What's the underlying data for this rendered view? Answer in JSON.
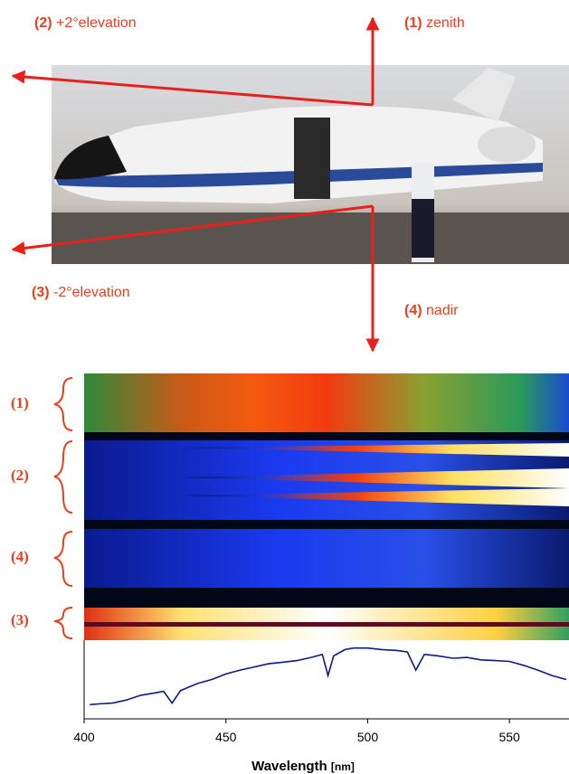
{
  "photo_labels": [
    {
      "number": "(1)",
      "text": "zenith"
    },
    {
      "number": "(2)",
      "text": "+2°elevation"
    },
    {
      "number": "(3)",
      "text": "-2°elevation"
    },
    {
      "number": "(4)",
      "text": "nadir"
    }
  ],
  "image_labels": [
    "(1)",
    "(2)",
    "(4)",
    "(3)"
  ],
  "chart_data": {
    "type": "line",
    "x_label": "Wavelength",
    "x_label_unit": "[nm]",
    "x": [
      402,
      405,
      410,
      415,
      420,
      425,
      428,
      431,
      434,
      440,
      445,
      450,
      455,
      460,
      465,
      470,
      475,
      480,
      484,
      486,
      488,
      492,
      495,
      500,
      505,
      510,
      514,
      517,
      520,
      525,
      530,
      535,
      540,
      545,
      550,
      555,
      560,
      565,
      570
    ],
    "values": [
      0.18,
      0.19,
      0.2,
      0.24,
      0.3,
      0.33,
      0.35,
      0.2,
      0.36,
      0.45,
      0.5,
      0.57,
      0.62,
      0.66,
      0.7,
      0.72,
      0.74,
      0.78,
      0.82,
      0.55,
      0.8,
      0.88,
      0.9,
      0.9,
      0.88,
      0.87,
      0.85,
      0.62,
      0.82,
      0.8,
      0.77,
      0.78,
      0.75,
      0.74,
      0.73,
      0.68,
      0.62,
      0.55,
      0.5
    ],
    "color": "#0a1a8a",
    "xlim": [
      400,
      571
    ],
    "xticks": [
      400,
      450,
      500,
      550
    ],
    "ylim": [
      0,
      1
    ]
  }
}
